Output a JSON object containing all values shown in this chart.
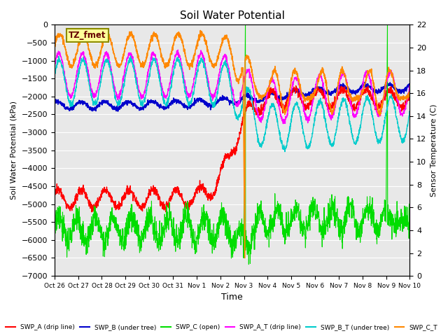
{
  "title": "Soil Water Potential",
  "ylabel_left": "Soil Water Potential (kPa)",
  "ylabel_right": "Sensor Temperature (C)",
  "xlabel": "Time",
  "ylim_left": [
    -7000,
    0
  ],
  "ylim_right": [
    0,
    22
  ],
  "yticks_left": [
    0,
    -500,
    -1000,
    -1500,
    -2000,
    -2500,
    -3000,
    -3500,
    -4000,
    -4500,
    -5000,
    -5500,
    -6000,
    -6500,
    -7000
  ],
  "yticks_right": [
    0,
    2,
    4,
    6,
    8,
    10,
    12,
    14,
    16,
    18,
    20,
    22
  ],
  "bg_color": "#e8e8e8",
  "label_box_text": "TZ_fmet",
  "label_box_facecolor": "#ffff99",
  "label_box_edgecolor": "#8B8B00",
  "grid_color": "white",
  "series": {
    "SWP_A": {
      "color": "#ff0000",
      "label": "SWP_A (drip line)"
    },
    "SWP_B": {
      "color": "#0000cc",
      "label": "SWP_B (under tree)"
    },
    "SWP_C": {
      "color": "#00dd00",
      "label": "SWP_C (open)"
    },
    "SWP_A_T": {
      "color": "#ff00ff",
      "label": "SWP_A_T (drip line)"
    },
    "SWP_B_T": {
      "color": "#00cccc",
      "label": "SWP_B_T (under tree)"
    },
    "SWP_C_T": {
      "color": "#ff8800",
      "label": "SWP_C_T"
    }
  },
  "x_tick_labels": [
    "Oct 26",
    "Oct 27",
    "Oct 28",
    "Oct 29",
    "Oct 30",
    "Oct 31",
    "Nov 1",
    "Nov 2",
    "Nov 3",
    "Nov 4",
    "Nov 5",
    "Nov 6",
    "Nov 7",
    "Nov 8",
    "Nov 9",
    "Nov 10"
  ]
}
